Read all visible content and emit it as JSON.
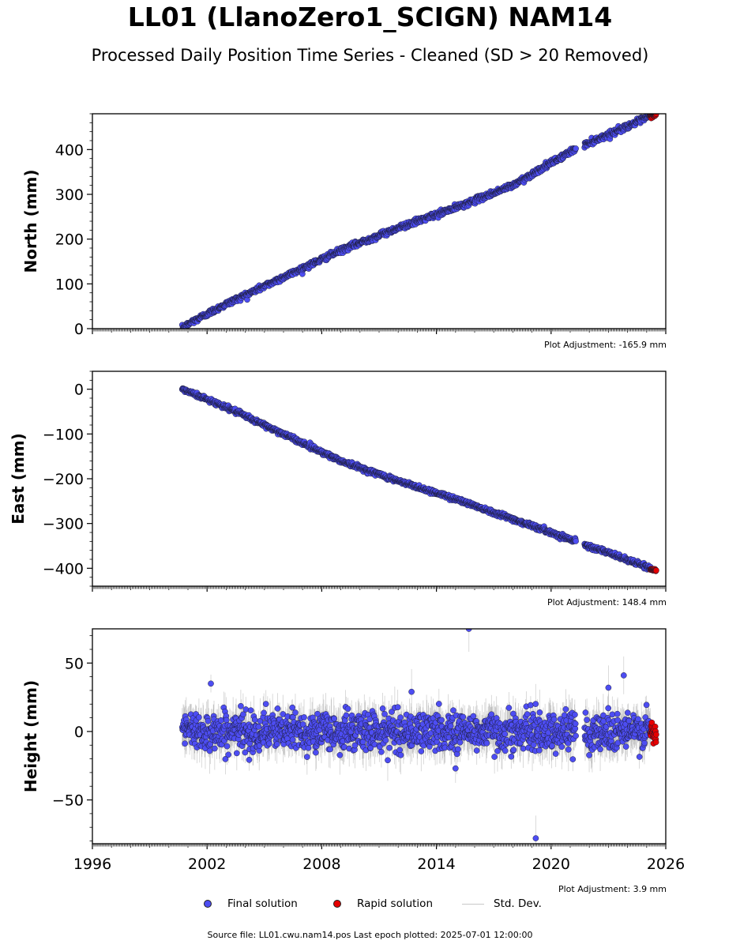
{
  "header": {
    "title": "LL01 (LlanoZero1_SCIGN) NAM14",
    "subtitle": "Processed Daily Position Time Series - Cleaned (SD > 20 Removed)"
  },
  "chart_data": [
    {
      "type": "scatter",
      "ylabel": "North (mm)",
      "xlim": [
        1996,
        2026
      ],
      "ylim": [
        0,
        480
      ],
      "yticks": [
        0,
        100,
        200,
        300,
        400
      ],
      "xticks": [],
      "adjustment_label": "Plot Adjustment: -165.9 mm",
      "series": [
        {
          "name": "Final solution",
          "color": "#4d4df2",
          "trend": {
            "x": [
              2000.7,
              2001.2,
              2003.0,
              2006.0,
              2009.0,
              2012.0,
              2015.0,
              2018.0,
              2021.2,
              2025.2
            ],
            "y": [
              0,
              15,
              55,
              115,
              175,
              225,
              270,
              320,
              400,
              475
            ]
          },
          "noise_sd": 3
        },
        {
          "name": "Rapid solution",
          "color": "#e60000",
          "trend": {
            "x": [
              2025.2,
              2025.5
            ],
            "y": [
              474,
              478
            ]
          },
          "noise_sd": 1.5
        }
      ]
    },
    {
      "type": "scatter",
      "ylabel": "East (mm)",
      "xlim": [
        1996,
        2026
      ],
      "ylim": [
        -440,
        40
      ],
      "yticks": [
        0,
        -100,
        -200,
        -300,
        -400
      ],
      "xticks": [],
      "adjustment_label": "Plot Adjustment: 148.4 mm",
      "series": [
        {
          "name": "Final solution",
          "color": "#4d4df2",
          "trend": {
            "x": [
              2000.7,
              2003.0,
              2006.0,
              2009.0,
              2012.0,
              2015.0,
              2018.0,
              2021.2,
              2025.2
            ],
            "y": [
              0,
              -40,
              -100,
              -160,
              -205,
              -245,
              -290,
              -338,
              -400
            ]
          },
          "noise_sd": 2.5
        },
        {
          "name": "Rapid solution",
          "color": "#e60000",
          "trend": {
            "x": [
              2025.2,
              2025.5
            ],
            "y": [
              -402,
              -404
            ]
          },
          "noise_sd": 1
        }
      ]
    },
    {
      "type": "scatter",
      "ylabel": "Height (mm)",
      "xlim": [
        1996,
        2026
      ],
      "ylim": [
        -82,
        75
      ],
      "yticks": [
        50,
        0,
        -50
      ],
      "xticks": [
        1996,
        2002,
        2008,
        2014,
        2020,
        2026
      ],
      "adjustment_label": "Plot Adjustment: 3.9 mm",
      "series": [
        {
          "name": "Final solution",
          "color": "#4d4df2",
          "trend": {
            "x": [
              2000.7,
              2025.2
            ],
            "y": [
              0,
              0
            ]
          },
          "noise_sd": 7,
          "outliers": [
            [
              2015.7,
              75
            ],
            [
              2019.2,
              -78
            ],
            [
              2002.2,
              35
            ],
            [
              2023.8,
              41
            ],
            [
              2023.0,
              32
            ],
            [
              2015.0,
              -27
            ],
            [
              2012.7,
              29
            ]
          ]
        },
        {
          "name": "Rapid solution",
          "color": "#e60000",
          "trend": {
            "x": [
              2025.2,
              2025.5
            ],
            "y": [
              0,
              0
            ]
          },
          "noise_sd": 3.5
        }
      ]
    }
  ],
  "legend": {
    "items": [
      {
        "label": "Final solution",
        "color": "#4d4df2",
        "kind": "dot"
      },
      {
        "label": "Rapid solution",
        "color": "#e60000",
        "kind": "dot"
      },
      {
        "label": "Std. Dev.",
        "color": "#c8c8c8",
        "kind": "line"
      }
    ]
  },
  "footer": {
    "source": "Source file: LL01.cwu.nam14.pos  Last epoch plotted: 2025-07-01 12:00:00"
  }
}
